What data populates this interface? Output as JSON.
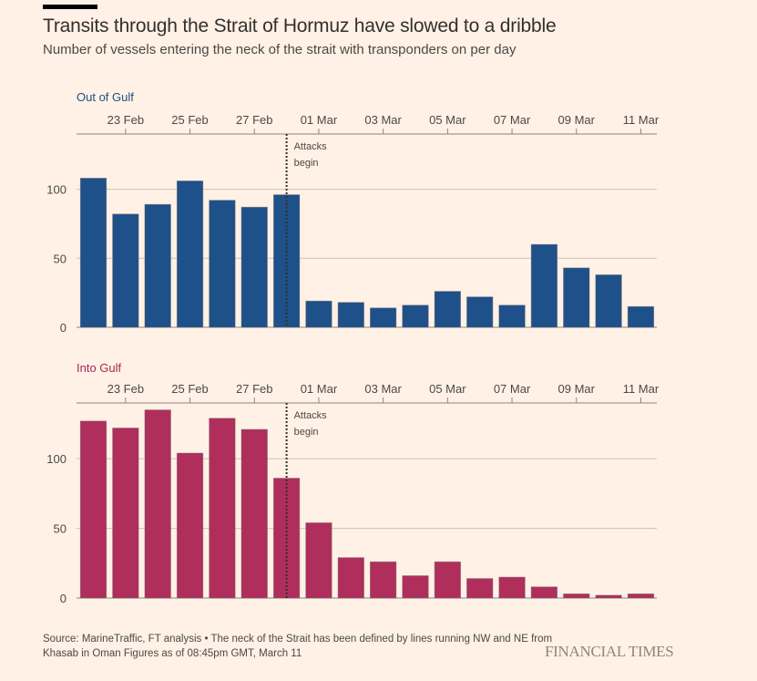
{
  "header": {
    "title": "Transits through the Strait of Hormuz have slowed to a dribble",
    "subtitle": "Number of vessels entering the neck of the strait with transponders on per day"
  },
  "footer": {
    "source": "Source: MarineTraffic, FT analysis • The neck of the Strait has been defined by lines running NW and NE from Khasab in Oman Figures as of 08:45pm GMT, March 11",
    "brand": "FINANCIAL TIMES"
  },
  "colors": {
    "background": "#fff1e5",
    "out_of_gulf": "#1e508a",
    "into_gulf": "#b02e5b",
    "out_label": "#1e4f86",
    "into_label": "#a32856",
    "grid": "#ccc1b7",
    "axis": "#8f857d"
  },
  "chart_data": [
    {
      "type": "bar",
      "title": "Out of Gulf",
      "categories": [
        "22 Feb",
        "23 Feb",
        "24 Feb",
        "25 Feb",
        "26 Feb",
        "27 Feb",
        "28 Feb",
        "01 Mar",
        "02 Mar",
        "03 Mar",
        "04 Mar",
        "05 Mar",
        "06 Mar",
        "07 Mar",
        "08 Mar",
        "09 Mar",
        "10 Mar",
        "11 Mar"
      ],
      "values": [
        108,
        82,
        89,
        106,
        92,
        87,
        96,
        19,
        18,
        14,
        16,
        26,
        22,
        16,
        60,
        43,
        38,
        15
      ],
      "x_tick_labels": [
        "23 Feb",
        "25 Feb",
        "27 Feb",
        "01 Mar",
        "03 Mar",
        "05 Mar",
        "07 Mar",
        "09 Mar",
        "11 Mar"
      ],
      "x_tick_indices": [
        1,
        3,
        5,
        7,
        9,
        11,
        13,
        15,
        17
      ],
      "y_ticks": [
        0,
        50,
        100
      ],
      "ylim": [
        0,
        140
      ],
      "xlabel": "",
      "ylabel": "",
      "grid": true,
      "x_axis_position": "top",
      "annotation": {
        "text_line1": "Attacks",
        "text_line2": "begin",
        "at_index": 6
      }
    },
    {
      "type": "bar",
      "title": "Into Gulf",
      "categories": [
        "22 Feb",
        "23 Feb",
        "24 Feb",
        "25 Feb",
        "26 Feb",
        "27 Feb",
        "28 Feb",
        "01 Mar",
        "02 Mar",
        "03 Mar",
        "04 Mar",
        "05 Mar",
        "06 Mar",
        "07 Mar",
        "08 Mar",
        "09 Mar",
        "10 Mar",
        "11 Mar"
      ],
      "values": [
        127,
        122,
        135,
        104,
        129,
        121,
        86,
        54,
        29,
        26,
        16,
        26,
        14,
        15,
        8,
        3,
        2,
        3
      ],
      "x_tick_labels": [
        "23 Feb",
        "25 Feb",
        "27 Feb",
        "01 Mar",
        "03 Mar",
        "05 Mar",
        "07 Mar",
        "09 Mar",
        "11 Mar"
      ],
      "x_tick_indices": [
        1,
        3,
        5,
        7,
        9,
        11,
        13,
        15,
        17
      ],
      "y_ticks": [
        0,
        50,
        100
      ],
      "ylim": [
        0,
        140
      ],
      "xlabel": "",
      "ylabel": "",
      "grid": true,
      "x_axis_position": "top",
      "annotation": {
        "text_line1": "Attacks",
        "text_line2": "begin",
        "at_index": 6
      }
    }
  ]
}
